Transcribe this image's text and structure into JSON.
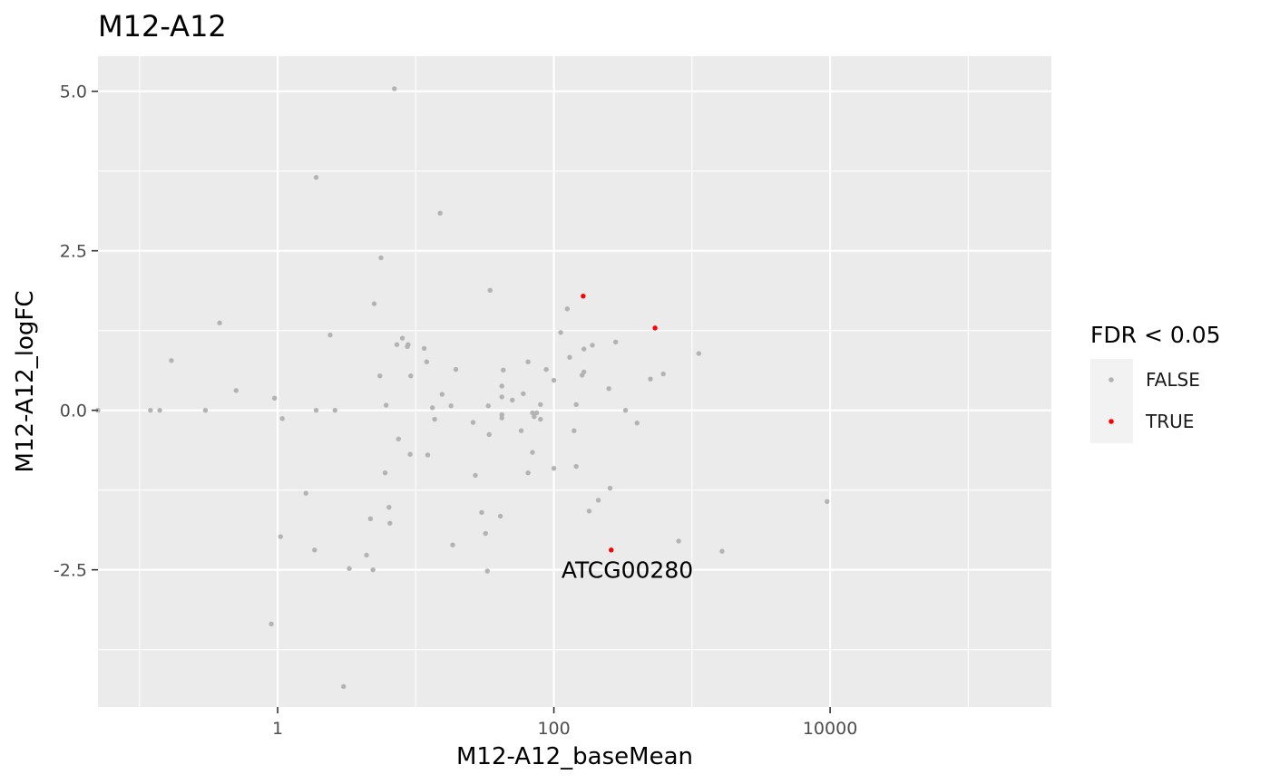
{
  "chart_data": {
    "type": "scatter",
    "title": "M12-A12",
    "xlabel": "M12-A12_baseMean",
    "ylabel": "M12-A12_logFC",
    "x_scale": "log10",
    "xlim": [
      0.05,
      400000
    ],
    "ylim": [
      -4.65,
      5.55
    ],
    "x_ticks": [
      1,
      100,
      10000
    ],
    "x_tick_labels": [
      "1",
      "100",
      "10000"
    ],
    "x_minor_ticks": [
      0.1,
      10,
      1000,
      100000
    ],
    "y_ticks": [
      -2.5,
      0,
      2.5,
      5
    ],
    "y_tick_labels": [
      "-2.5",
      "0.0",
      "2.5",
      "5.0"
    ],
    "y_minor_ticks": [
      -3.75,
      -1.25,
      1.25,
      3.75
    ],
    "grid": true,
    "legend": {
      "title": "FDR < 0.05",
      "position": "right",
      "entries": [
        {
          "label": "FALSE",
          "color": "#b3b3b3"
        },
        {
          "label": "TRUE",
          "color": "#ff0000"
        }
      ]
    },
    "colors": {
      "panel": "#ebebeb",
      "grid": "#ffffff",
      "false": "#b3b3b3",
      "true": "#ff0000"
    },
    "annotations": [
      {
        "text": "ATCG00280",
        "x": 340,
        "y": -2.5
      }
    ],
    "series": [
      {
        "name": "FALSE",
        "points": [
          [
            0.05,
            0.0
          ],
          [
            0.12,
            0.0
          ],
          [
            0.14,
            0.0
          ],
          [
            0.17,
            0.78
          ],
          [
            0.3,
            0.0
          ],
          [
            0.38,
            1.37
          ],
          [
            0.5,
            0.31
          ],
          [
            0.9,
            -3.35
          ],
          [
            0.95,
            0.19
          ],
          [
            1.05,
            -1.98
          ],
          [
            1.08,
            -0.13
          ],
          [
            1.6,
            -1.3
          ],
          [
            1.9,
            3.65
          ],
          [
            1.9,
            0.0
          ],
          [
            1.85,
            -2.19
          ],
          [
            2.4,
            1.18
          ],
          [
            2.6,
            0.0
          ],
          [
            3.0,
            -4.33
          ],
          [
            3.3,
            -2.48
          ],
          [
            4.4,
            -2.27
          ],
          [
            4.7,
            -1.7
          ],
          [
            4.9,
            -2.5
          ],
          [
            5.0,
            1.67
          ],
          [
            5.5,
            0.54
          ],
          [
            5.6,
            2.39
          ],
          [
            6.0,
            -0.98
          ],
          [
            6.1,
            0.08
          ],
          [
            6.4,
            -1.52
          ],
          [
            6.5,
            -1.77
          ],
          [
            7.0,
            5.04
          ],
          [
            7.3,
            1.03
          ],
          [
            7.5,
            -0.45
          ],
          [
            8.0,
            1.13
          ],
          [
            8.7,
            1.0
          ],
          [
            8.8,
            1.03
          ],
          [
            9.1,
            -0.69
          ],
          [
            9.2,
            0.54
          ],
          [
            11.5,
            0.97
          ],
          [
            12.0,
            0.76
          ],
          [
            12.2,
            -0.7
          ],
          [
            13.2,
            0.04
          ],
          [
            13.7,
            -0.14
          ],
          [
            15.0,
            3.09
          ],
          [
            15.5,
            0.25
          ],
          [
            18.0,
            0.07
          ],
          [
            18.5,
            -2.11
          ],
          [
            19.5,
            0.64
          ],
          [
            26.0,
            -0.19
          ],
          [
            27.0,
            -1.02
          ],
          [
            30.0,
            -1.6
          ],
          [
            32.0,
            -1.93
          ],
          [
            33.0,
            -2.52
          ],
          [
            33.5,
            0.07
          ],
          [
            34.0,
            -0.38
          ],
          [
            34.5,
            1.88
          ],
          [
            41.0,
            -1.66
          ],
          [
            42.0,
            -0.12
          ],
          [
            42.0,
            -0.07
          ],
          [
            42.0,
            0.21
          ],
          [
            42.0,
            0.38
          ],
          [
            43.0,
            0.63
          ],
          [
            50.0,
            0.16
          ],
          [
            58.0,
            -0.32
          ],
          [
            60.0,
            0.26
          ],
          [
            65.0,
            -0.98
          ],
          [
            65.0,
            0.76
          ],
          [
            70.0,
            -0.04
          ],
          [
            70.0,
            -0.66
          ],
          [
            72.0,
            -0.1
          ],
          [
            75.0,
            -0.04
          ],
          [
            80.0,
            0.09
          ],
          [
            80.0,
            -0.14
          ],
          [
            88.0,
            0.64
          ],
          [
            100.0,
            -0.91
          ],
          [
            100.0,
            0.47
          ],
          [
            112.0,
            1.22
          ],
          [
            125.0,
            1.59
          ],
          [
            130.0,
            0.83
          ],
          [
            140.0,
            -0.32
          ],
          [
            145.0,
            0.09
          ],
          [
            145.0,
            -0.88
          ],
          [
            160.0,
            0.55
          ],
          [
            165.0,
            0.96
          ],
          [
            165.0,
            0.6
          ],
          [
            180.0,
            -1.58
          ],
          [
            190.0,
            1.02
          ],
          [
            210.0,
            -1.41
          ],
          [
            250.0,
            0.34
          ],
          [
            255.0,
            -1.22
          ],
          [
            280.0,
            1.07
          ],
          [
            330.0,
            0.0
          ],
          [
            400.0,
            -0.2
          ],
          [
            500.0,
            0.49
          ],
          [
            620.0,
            0.57
          ],
          [
            800.0,
            -2.05
          ],
          [
            1120.0,
            0.89
          ],
          [
            1650.0,
            -2.21
          ],
          [
            9500.0,
            -1.43
          ]
        ]
      },
      {
        "name": "TRUE",
        "points": [
          [
            163.0,
            1.79
          ],
          [
            260.0,
            -2.19
          ],
          [
            540.0,
            1.29
          ]
        ]
      }
    ]
  }
}
